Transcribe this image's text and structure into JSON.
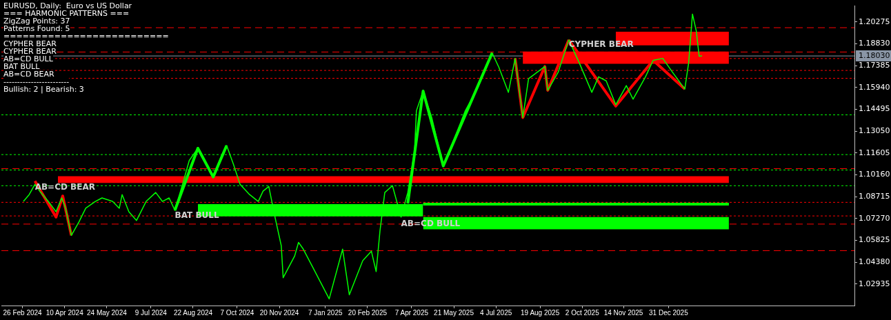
{
  "chart_data": {
    "type": "line",
    "title": "EURUSD, Daily:  Euro vs US Dollar",
    "annotations": [
      "=== HARMONIC PATTERNS ===",
      "ZigZag Points: 37",
      "Patterns Found: 5",
      "==========================",
      "CYPHER BEAR",
      "CYPHER BEAR",
      "AB=CD BULL",
      "BAT BULL",
      "AB=CD BEAR",
      "------------------------",
      "Bullish: 2 | Bearish: 3",
      {
        "text": "AB=CD BEAR",
        "x": "2024-03-10",
        "y": 1.093
      },
      {
        "text": "BAT BULL",
        "x": "2024-08-03",
        "y": 1.0744
      },
      {
        "text": "AB=CD BULL",
        "x": "2025-03-27",
        "y": 1.069
      },
      {
        "text": "CYPHER BEAR",
        "x": "2025-09-18",
        "y": 1.1878
      }
    ],
    "series": [
      {
        "color": "#00ff00",
        "x": [
          "2024-02-27",
          "2024-03-04",
          "2024-03-10",
          "2024-03-15",
          "2024-03-24",
          "2024-04-01",
          "2024-04-07",
          "2024-04-11",
          "2024-04-17",
          "2024-04-25",
          "2024-05-02",
          "2024-05-12",
          "2024-05-19",
          "2024-05-30",
          "2024-06-06",
          "2024-06-09",
          "2024-06-16",
          "2024-06-24",
          "2024-07-04",
          "2024-07-14",
          "2024-07-21",
          "2024-07-28",
          "2024-08-03",
          "2024-08-11",
          "2024-08-18",
          "2024-08-27",
          "2024-09-05",
          "2024-09-12",
          "2024-09-21",
          "2024-09-26",
          "2024-10-03",
          "2024-10-10",
          "2024-10-20",
          "2024-10-29",
          "2024-11-03",
          "2024-11-09",
          "2024-11-15",
          "2024-11-22",
          "2024-11-24",
          "2024-12-06",
          "2024-12-10",
          "2024-12-15",
          "2024-12-25",
          "2025-01-11",
          "2025-01-25",
          "2025-02-01",
          "2025-02-15",
          "2025-02-24",
          "2025-03-01",
          "2025-03-05",
          "2025-03-10",
          "2025-03-18",
          "2025-03-27",
          "2025-04-03",
          "2025-04-10",
          "2025-04-12",
          "2025-04-19",
          "2025-04-28",
          "2025-05-10",
          "2025-05-19",
          "2025-06-02",
          "2025-06-15",
          "2025-06-30",
          "2025-07-07",
          "2025-07-17",
          "2025-07-24",
          "2025-08-01",
          "2025-08-07",
          "2025-08-24",
          "2025-08-27",
          "2025-09-07",
          "2025-09-18",
          "2025-09-29",
          "2025-10-12",
          "2025-10-19",
          "2025-10-27",
          "2025-11-06",
          "2025-11-17",
          "2025-11-24",
          "2025-12-07",
          "2025-12-15",
          "2025-12-25",
          "2026-01-04",
          "2026-01-17",
          "2026-01-21",
          "2026-01-25",
          "2026-01-29",
          "2026-02-01",
          "2026-02-04"
        ],
        "values": [
          1.084,
          1.0885,
          1.0953,
          1.0908,
          1.084,
          1.0772,
          1.0863,
          1.0795,
          1.0615,
          1.0705,
          1.0795,
          1.084,
          1.0863,
          1.084,
          1.0795,
          1.0885,
          1.0772,
          1.0714,
          1.084,
          1.0899,
          1.084,
          1.0863,
          1.0781,
          1.0953,
          1.1111,
          1.1192,
          1.1088,
          1.1002,
          1.1147,
          1.121,
          1.1088,
          1.0953,
          1.0885,
          1.084,
          1.0908,
          1.0939,
          1.075,
          1.0547,
          1.0335,
          1.0479,
          1.0569,
          1.0524,
          1.0403,
          1.0195,
          1.0524,
          1.0222,
          1.0448,
          1.0511,
          1.0376,
          1.0646,
          1.0899,
          1.0944,
          1.0736,
          1.0899,
          1.1169,
          1.144,
          1.1571,
          1.1395,
          1.1075,
          1.1214,
          1.144,
          1.1593,
          1.1823,
          1.1728,
          1.1562,
          1.1787,
          1.1395,
          1.1652,
          1.1733,
          1.1575,
          1.1697,
          1.1909,
          1.1756,
          1.1562,
          1.1665,
          1.1638,
          1.148,
          1.1607,
          1.1517,
          1.1665,
          1.1774,
          1.1787,
          1.1697,
          1.1584,
          1.1756,
          1.208,
          1.1968,
          1.1801,
          1.1803
        ]
      },
      {
        "color": "#ff0000",
        "x": [
          "2024-03-10",
          "2024-04-01",
          "2024-04-08",
          "2024-04-17"
        ],
        "values": [
          1.0975,
          1.0736,
          1.0876,
          1.0615
        ]
      },
      {
        "color": "#00ff00",
        "x": [
          "2024-08-03",
          "2024-08-27",
          "2024-09-12",
          "2024-09-26"
        ],
        "values": [
          1.0781,
          1.1192,
          1.1002,
          1.121
        ]
      },
      {
        "color": "#00ff00",
        "x": [
          "2025-04-03",
          "2025-04-19",
          "2025-05-10",
          "2025-06-30"
        ],
        "values": [
          1.0827,
          1.1571,
          1.1075,
          1.1823
        ]
      },
      {
        "color": "#ff0000",
        "x": [
          "2025-07-24",
          "2025-08-01",
          "2025-08-24",
          "2025-08-27",
          "2025-09-18"
        ],
        "values": [
          1.1787,
          1.1395,
          1.1733,
          1.1575,
          1.1909
        ]
      },
      {
        "color": "#ff0000",
        "x": [
          "2025-09-18",
          "2025-10-06",
          "2025-11-06",
          "2025-12-15",
          "2026-01-17"
        ],
        "values": [
          1.1909,
          1.1749,
          1.1471,
          1.1774,
          1.1584
        ]
      },
      {
        "color": "#00ff00",
        "x": [
          "2025-04-19",
          "2026-03-04"
        ],
        "values": [
          1.0822,
          1.0822
        ]
      },
      {
        "type": "area",
        "color": "#ff0000",
        "x": [
          "2024-04-03",
          "2026-03-04"
        ],
        "values": [
          null,
          null
        ],
        "lower": [
          1.0962,
          1.0962
        ],
        "upper": [
          1.1007,
          1.1007
        ]
      },
      {
        "type": "area",
        "color": "#00ff00",
        "x": [
          "2024-08-27",
          "2025-04-19"
        ],
        "values": [
          null,
          null
        ],
        "lower": [
          1.0741,
          1.0741
        ],
        "upper": [
          1.0822,
          1.0822
        ]
      },
      {
        "type": "area",
        "color": "#00ff00",
        "x": [
          "2025-04-19",
          "2026-03-04"
        ],
        "values": [
          null,
          null
        ],
        "lower": [
          1.0655,
          1.0655
        ],
        "upper": [
          1.0736,
          1.0736
        ]
      },
      {
        "type": "area",
        "color": "#ff0000",
        "x": [
          "2025-11-06",
          "2026-03-04"
        ],
        "values": [
          null,
          null
        ],
        "lower": [
          1.1873,
          1.1873
        ],
        "upper": [
          1.1963,
          1.1963
        ]
      },
      {
        "type": "area",
        "color": "#ff0000",
        "x": [
          "2025-08-01",
          "2026-03-04"
        ],
        "values": [
          null,
          null
        ],
        "lower": [
          1.1751,
          1.1751
        ],
        "upper": [
          1.1832,
          1.1832
        ]
      }
    ],
    "ref_lines": [
      {
        "axis": "y",
        "value": 1.1057,
        "color": "#ff0000",
        "line_style": "dashed"
      },
      {
        "axis": "y",
        "value": 1.1048,
        "color": "#00ff00",
        "line_style": "dotted"
      },
      {
        "axis": "y",
        "value": 1.0944,
        "color": "#00ff00",
        "line_style": "dotted"
      },
      {
        "axis": "y",
        "value": 1.1413,
        "color": "#00ff00",
        "line_style": "dotted"
      },
      {
        "axis": "y",
        "value": 1.115,
        "color": "#00ff00",
        "line_style": "dotted"
      },
      {
        "axis": "y",
        "value": 1.0834,
        "color": "#ff0000",
        "line_style": "dotted"
      },
      {
        "axis": "y",
        "value": 1.0744,
        "color": "#ff0000",
        "line_style": "dotted"
      },
      {
        "axis": "y",
        "value": 1.069,
        "color": "#ff0000",
        "line_style": "dashed"
      },
      {
        "axis": "y",
        "value": 1.0514,
        "color": "#ff0000",
        "line_style": "dashed"
      },
      {
        "axis": "y",
        "value": 1.199,
        "color": "#ff0000",
        "line_style": "dashed"
      },
      {
        "axis": "y",
        "value": 1.1829,
        "color": "#ff0000",
        "line_style": "dashed"
      },
      {
        "axis": "y",
        "value": 1.1786,
        "color": "#ff0000",
        "line_style": "dotted"
      },
      {
        "axis": "y",
        "value": 1.1707,
        "color": "#ff0000",
        "line_style": "dotted"
      },
      {
        "axis": "y",
        "value": 1.1655,
        "color": "#ff0000",
        "line_style": "dotted"
      },
      {
        "axis": "y",
        "value": 1.1803,
        "label": "1.18030",
        "color": "#8a96a6",
        "line_style": "solid"
      }
    ],
    "xlim": [
      "2024-02-04",
      "2026-07-13"
    ],
    "xticks": [
      {
        "value": "2024-02-26",
        "label": "26 Feb 2024"
      },
      {
        "value": "2024-04-10",
        "label": "10 Apr 2024"
      },
      {
        "value": "2024-05-24",
        "label": "24 May 2024"
      },
      {
        "value": "2024-07-09",
        "label": "9 Jul 2024"
      },
      {
        "value": "2024-08-22",
        "label": "22 Aug 2024"
      },
      {
        "value": "2024-10-07",
        "label": "7 Oct 2024"
      },
      {
        "value": "2024-11-20",
        "label": "20 Nov 2024"
      },
      {
        "value": "2025-01-07",
        "label": "7 Jan 2025"
      },
      {
        "value": "2025-02-20",
        "label": "20 Feb 2025"
      },
      {
        "value": "2025-04-07",
        "label": "7 Apr 2025"
      },
      {
        "value": "2025-05-21",
        "label": "21 May 2025"
      },
      {
        "value": "2025-07-04",
        "label": "4 Jul 2025"
      },
      {
        "value": "2025-08-19",
        "label": "19 Aug 2025"
      },
      {
        "value": "2025-10-02",
        "label": "2 Oct 2025"
      },
      {
        "value": "2025-11-14",
        "label": "14 Nov 2025"
      },
      {
        "value": "2025-12-31",
        "label": "31 Dec 2025"
      }
    ],
    "ylim": [
      1.0151,
      1.2134
    ],
    "yticks": [
      1.02935,
      {
        "value": 1.0438,
        "label": "1.04380"
      },
      1.05825,
      {
        "value": 1.0727,
        "label": "1.07270"
      },
      1.08715,
      {
        "value": 1.1016,
        "label": "1.10160"
      },
      1.11605,
      {
        "value": 1.1305,
        "label": "1.13050"
      },
      1.14495,
      {
        "value": 1.1594,
        "label": "1.15940"
      },
      1.17385,
      {
        "value": 1.1883,
        "label": "1.18830"
      },
      1.20275
    ],
    "grid": false,
    "legend": false,
    "marker": "none",
    "line_style": "solid"
  }
}
